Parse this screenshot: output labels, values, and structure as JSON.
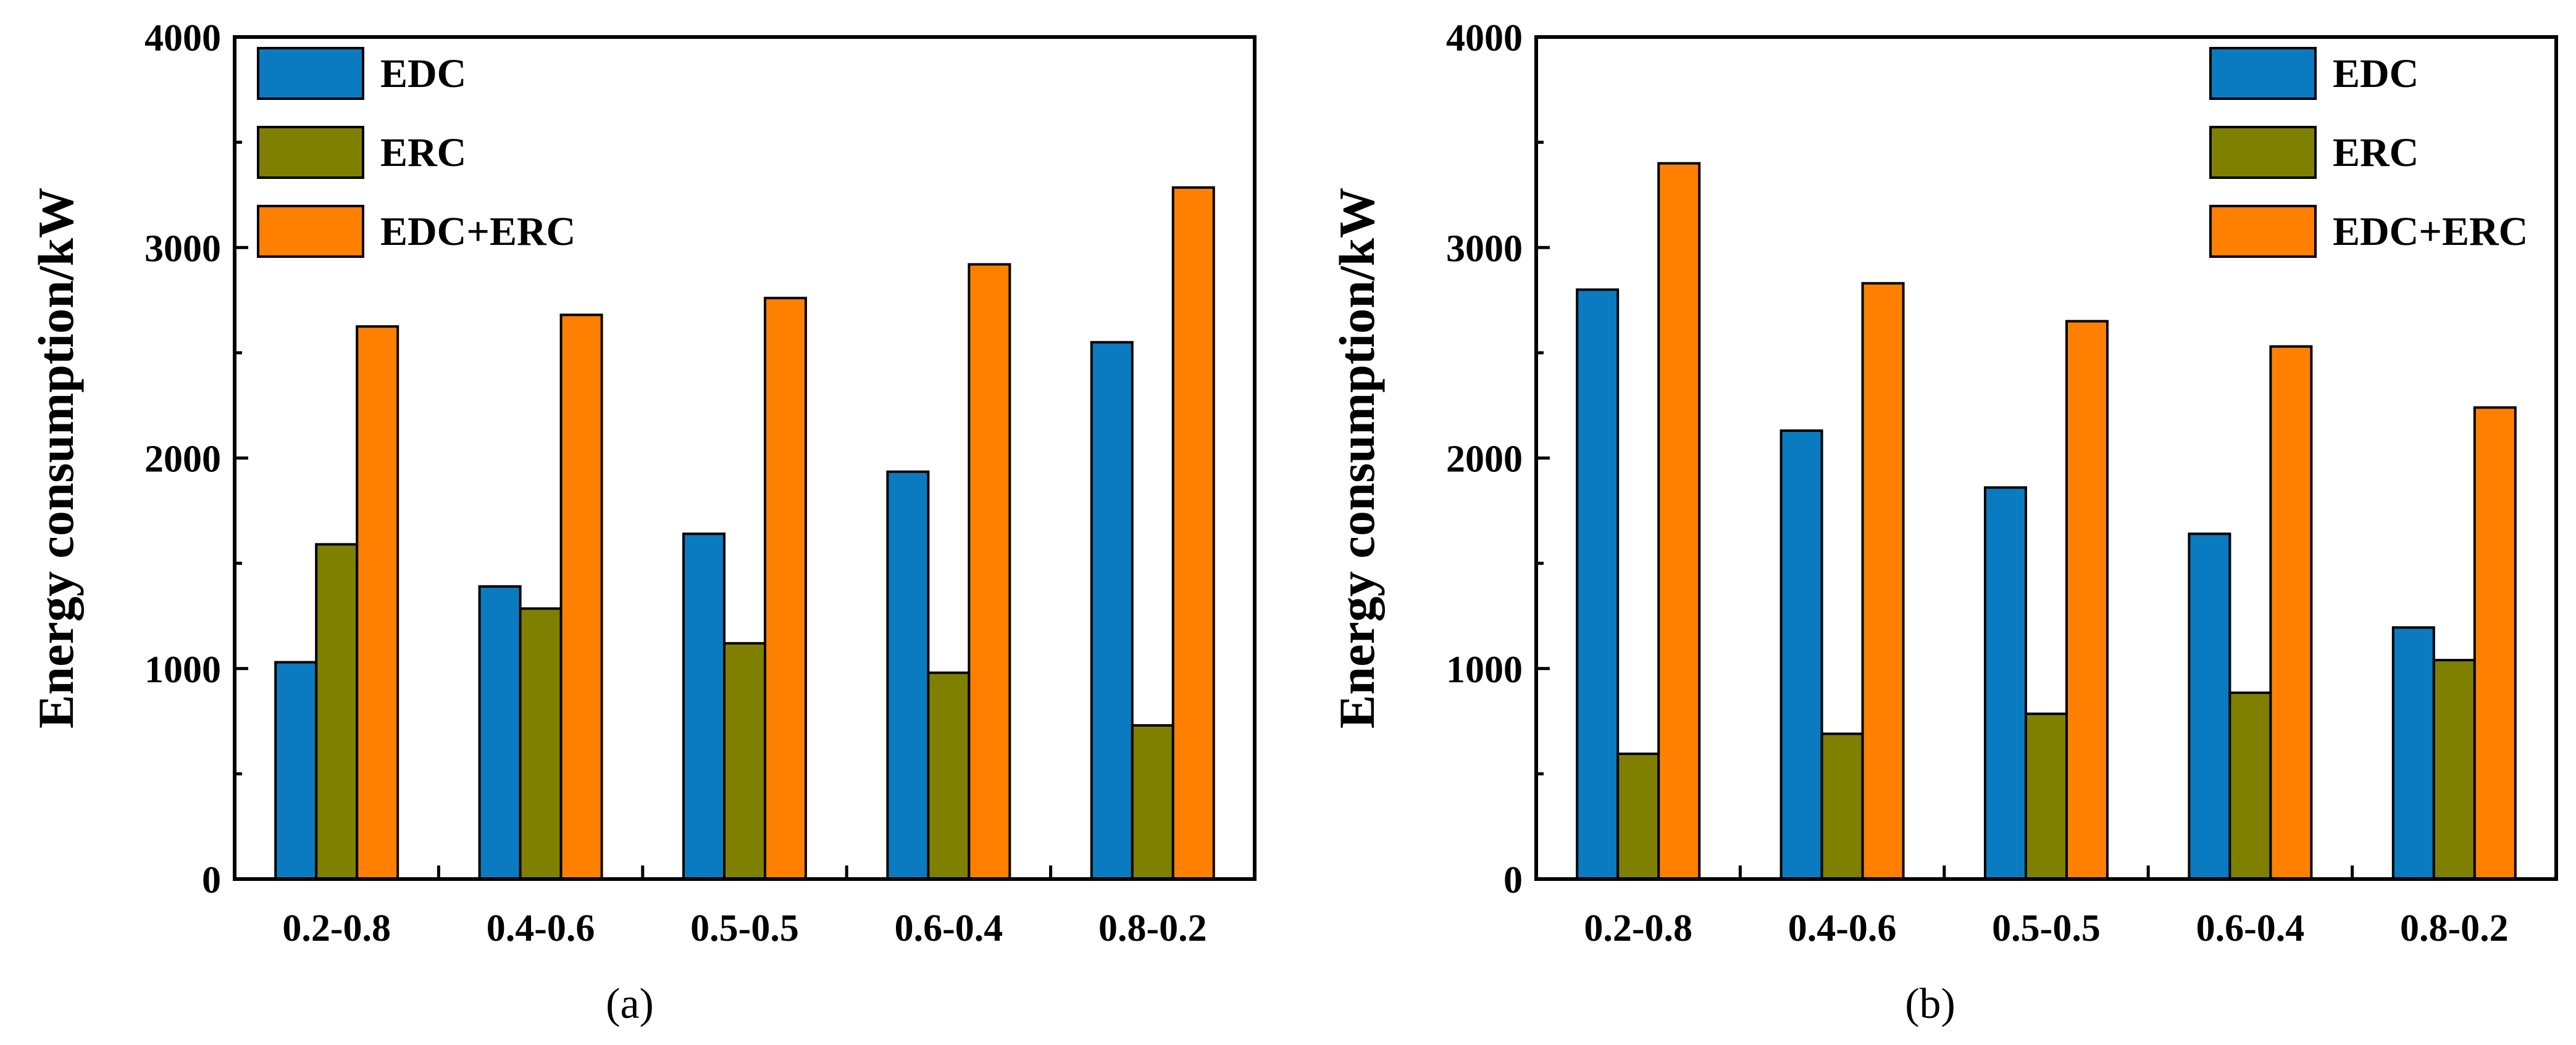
{
  "chart_data": [
    {
      "type": "bar",
      "panel_label": "(a)",
      "categories": [
        "0.2-0.8",
        "0.4-0.6",
        "0.5-0.5",
        "0.6-0.4",
        "0.8-0.2"
      ],
      "series": [
        {
          "name": "EDC",
          "color": "#0a7bc0",
          "values": [
            1030,
            1390,
            1640,
            1935,
            2550
          ]
        },
        {
          "name": "ERC",
          "color": "#808000",
          "values": [
            1590,
            1285,
            1120,
            980,
            730
          ]
        },
        {
          "name": "EDC+ERC",
          "color": "#ff8000",
          "values": [
            2625,
            2680,
            2760,
            2920,
            3285
          ]
        }
      ],
      "ylabel": "Energy consumption/kW",
      "xlabel": "",
      "ylim": [
        0,
        4000
      ],
      "yticks": [
        0,
        1000,
        2000,
        3000,
        4000
      ],
      "yticks_labels": [
        "0",
        "1000",
        "2000",
        "3000",
        "4000"
      ],
      "legend": "top-left"
    },
    {
      "type": "bar",
      "panel_label": "(b)",
      "categories": [
        "0.2-0.8",
        "0.4-0.6",
        "0.5-0.5",
        "0.6-0.4",
        "0.8-0.2"
      ],
      "series": [
        {
          "name": "EDC",
          "color": "#0a7bc0",
          "values": [
            2800,
            2130,
            1860,
            1640,
            1195
          ]
        },
        {
          "name": "ERC",
          "color": "#808000",
          "values": [
            595,
            690,
            785,
            885,
            1040
          ]
        },
        {
          "name": "EDC+ERC",
          "color": "#ff8000",
          "values": [
            3400,
            2830,
            2650,
            2530,
            2240
          ]
        }
      ],
      "ylabel": "Energy consumption/kW",
      "xlabel": "",
      "ylim": [
        0,
        4000
      ],
      "yticks": [
        0,
        1000,
        2000,
        3000,
        4000
      ],
      "yticks_labels": [
        "0",
        "1000",
        "2000",
        "3000",
        "4000"
      ],
      "legend": "top-right"
    }
  ]
}
